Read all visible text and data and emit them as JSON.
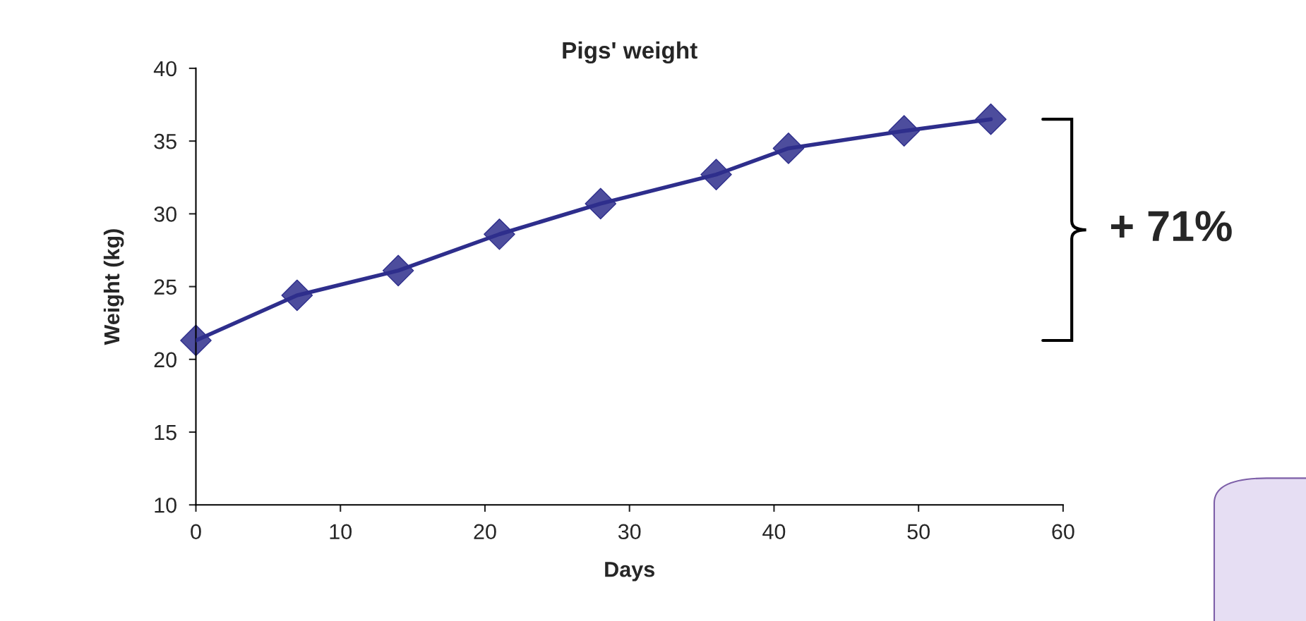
{
  "chart_data": {
    "type": "line",
    "title": "Pigs' weight",
    "xlabel": "Days",
    "ylabel": "Weight (kg)",
    "x": [
      0,
      7,
      14,
      21,
      28,
      36,
      41,
      49,
      55
    ],
    "series": [
      {
        "color": "#2e2e8c",
        "values": [
          21.3,
          24.4,
          26.1,
          28.6,
          30.7,
          32.7,
          34.5,
          35.7,
          36.5
        ]
      }
    ],
    "xlim": [
      0,
      60
    ],
    "xticks": [
      0,
      10,
      20,
      30,
      40,
      50,
      60
    ],
    "ylim": [
      10,
      40
    ],
    "yticks": [
      10,
      15,
      20,
      25,
      30,
      35,
      40
    ],
    "marker": "diamond",
    "line_style": "solid",
    "grid": false,
    "annotations": [
      "+ 71%"
    ]
  }
}
